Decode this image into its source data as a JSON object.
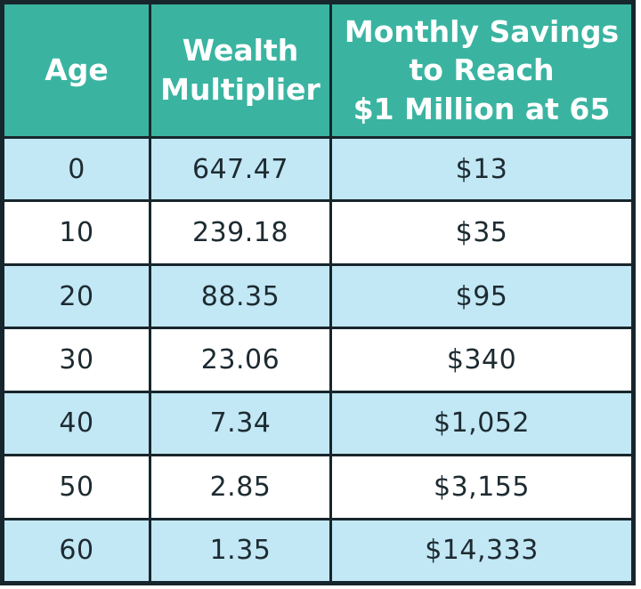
{
  "table": {
    "headers": [
      "Age",
      "Wealth\nMultiplier",
      "Monthly Savings\nto Reach\n$1 Million at 65"
    ],
    "rows": [
      {
        "age": "0",
        "multiplier": "647.47",
        "savings": "$13"
      },
      {
        "age": "10",
        "multiplier": "239.18",
        "savings": "$35"
      },
      {
        "age": "20",
        "multiplier": "88.35",
        "savings": "$95"
      },
      {
        "age": "30",
        "multiplier": "23.06",
        "savings": "$340"
      },
      {
        "age": "40",
        "multiplier": "7.34",
        "savings": "$1,052"
      },
      {
        "age": "50",
        "multiplier": "2.85",
        "savings": "$3,155"
      },
      {
        "age": "60",
        "multiplier": "1.35",
        "savings": "$14,333"
      }
    ]
  },
  "colors": {
    "header_bg": "#3ab4a1",
    "header_text": "#ffffff",
    "row_alt_bg": "#c2e7f5",
    "row_bg": "#ffffff",
    "border": "#17262c",
    "body_text": "#1d2b31"
  },
  "chart_data": {
    "type": "table",
    "title": "",
    "columns": [
      "Age",
      "Wealth Multiplier",
      "Monthly Savings to Reach $1 Million at 65"
    ],
    "rows": [
      [
        0,
        647.47,
        "$13"
      ],
      [
        10,
        239.18,
        "$35"
      ],
      [
        20,
        88.35,
        "$95"
      ],
      [
        30,
        23.06,
        "$340"
      ],
      [
        40,
        7.34,
        "$1,052"
      ],
      [
        50,
        2.85,
        "$3,155"
      ],
      [
        60,
        1.35,
        "$14,333"
      ]
    ]
  }
}
